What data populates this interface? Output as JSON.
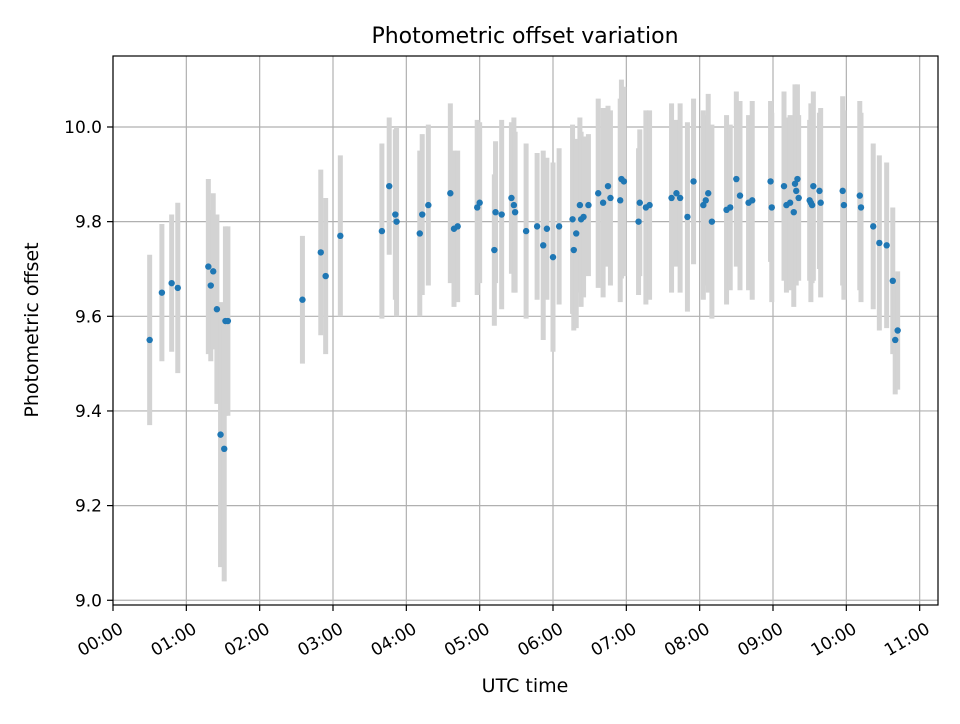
{
  "chart_data": {
    "type": "scatter",
    "title": "Photometric offset variation",
    "xlabel": "UTC time",
    "ylabel": "Photometric offset",
    "x_unit": "hours",
    "xlim": [
      "00:00",
      "11:15"
    ],
    "ylim": [
      8.99,
      10.15
    ],
    "xticks": [
      "00:00",
      "01:00",
      "02:00",
      "03:00",
      "04:00",
      "05:00",
      "06:00",
      "07:00",
      "08:00",
      "09:00",
      "10:00",
      "11:00"
    ],
    "yticks": [
      "9.0",
      "9.2",
      "9.4",
      "9.6",
      "9.8",
      "10.0"
    ],
    "grid": true,
    "colors": {
      "points": "#1f77b4",
      "errorbars": "#d3d3d3",
      "grid": "#b0b0b0"
    },
    "series": [
      {
        "x": [
          "00:30",
          "00:40",
          "00:48",
          "00:53",
          "01:18",
          "01:20",
          "01:22",
          "01:25",
          "01:28",
          "01:31",
          "01:32",
          "01:34",
          "02:35",
          "02:50",
          "02:54",
          "03:06",
          "03:40",
          "03:46",
          "03:51",
          "03:52",
          "04:11",
          "04:13",
          "04:18",
          "04:36",
          "04:39",
          "04:42",
          "04:58",
          "05:00",
          "05:12",
          "05:13",
          "05:18",
          "05:26",
          "05:28",
          "05:29",
          "05:38",
          "05:47",
          "05:52",
          "05:55",
          "06:00",
          "06:05",
          "06:16",
          "06:17",
          "06:19",
          "06:22",
          "06:23",
          "06:25",
          "06:29",
          "06:37",
          "06:41",
          "06:45",
          "06:47",
          "06:55",
          "06:56",
          "06:58",
          "07:10",
          "07:11",
          "07:16",
          "07:19",
          "07:37",
          "07:41",
          "07:44",
          "07:50",
          "07:55",
          "08:03",
          "08:05",
          "08:07",
          "08:10",
          "08:22",
          "08:25",
          "08:30",
          "08:33",
          "08:40",
          "08:43",
          "08:58",
          "08:59",
          "09:09",
          "09:11",
          "09:14",
          "09:17",
          "09:18",
          "09:19",
          "09:20",
          "09:21",
          "09:30",
          "09:31",
          "09:32",
          "09:33",
          "09:38",
          "09:39",
          "09:57",
          "09:58",
          "10:11",
          "10:12",
          "10:22",
          "10:27",
          "10:33",
          "10:38",
          "10:40",
          "10:42"
        ],
        "y": [
          9.55,
          9.65,
          9.67,
          9.66,
          9.705,
          9.665,
          9.695,
          9.615,
          9.35,
          9.32,
          9.59,
          9.59,
          9.635,
          9.735,
          9.685,
          9.77,
          9.78,
          9.875,
          9.815,
          9.8,
          9.775,
          9.815,
          9.835,
          9.86,
          9.785,
          9.79,
          9.83,
          9.84,
          9.74,
          9.82,
          9.815,
          9.85,
          9.835,
          9.82,
          9.78,
          9.79,
          9.75,
          9.785,
          9.725,
          9.79,
          9.805,
          9.74,
          9.775,
          9.835,
          9.805,
          9.81,
          9.835,
          9.86,
          9.84,
          9.875,
          9.85,
          9.845,
          9.89,
          9.885,
          9.8,
          9.84,
          9.83,
          9.835,
          9.85,
          9.86,
          9.85,
          9.81,
          9.885,
          9.835,
          9.845,
          9.86,
          9.8,
          9.825,
          9.83,
          9.89,
          9.855,
          9.84,
          9.845,
          9.885,
          9.83,
          9.875,
          9.835,
          9.84,
          9.82,
          9.88,
          9.865,
          9.89,
          9.85,
          9.845,
          9.84,
          9.835,
          9.875,
          9.865,
          9.84,
          9.865,
          9.835,
          9.855,
          9.83,
          9.79,
          9.755,
          9.75,
          9.675,
          9.55,
          9.57
        ],
        "yerr": [
          0.18,
          0.145,
          0.145,
          0.18,
          0.185,
          0.16,
          0.165,
          0.2,
          0.28,
          0.28,
          0.2,
          0.2,
          0.135,
          0.175,
          0.165,
          0.17,
          0.185,
          0.145,
          0.18,
          0.2,
          0.175,
          0.17,
          0.17,
          0.19,
          0.165,
          0.16,
          0.185,
          0.17,
          0.16,
          0.15,
          0.2,
          0.16,
          0.185,
          0.17,
          0.185,
          0.155,
          0.2,
          0.15,
          0.2,
          0.165,
          0.2,
          0.17,
          0.2,
          0.185,
          0.185,
          0.17,
          0.15,
          0.2,
          0.2,
          0.17,
          0.185,
          0.215,
          0.21,
          0.2,
          0.155,
          0.155,
          0.205,
          0.2,
          0.2,
          0.155,
          0.2,
          0.2,
          0.175,
          0.2,
          0.18,
          0.21,
          0.205,
          0.2,
          0.175,
          0.185,
          0.2,
          0.185,
          0.21,
          0.17,
          0.2,
          0.2,
          0.185,
          0.185,
          0.2,
          0.21,
          0.2,
          0.2,
          0.175,
          0.17,
          0.21,
          0.165,
          0.2,
          0.165,
          0.2,
          0.2,
          0.2,
          0.2,
          0.2,
          0.175,
          0.185,
          0.175,
          0.155,
          0.115,
          0.125
        ]
      }
    ]
  }
}
